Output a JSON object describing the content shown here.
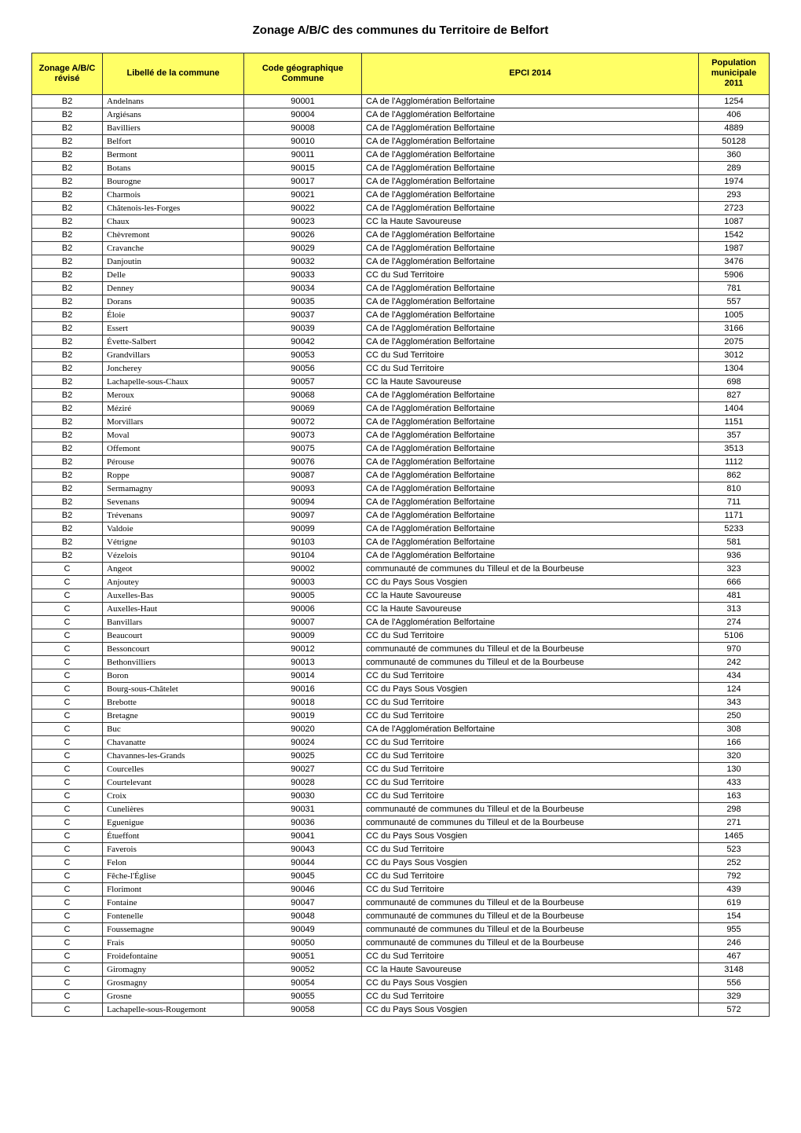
{
  "title": "Zonage A/B/C des communes du Territoire de Belfort",
  "columns": [
    "Zonage A/B/C révisé",
    "Libellé de la commune",
    "Code géographique Commune",
    "EPCI 2014",
    "Population municipale 2011"
  ],
  "header_bg": "#ffff66",
  "border_color": "#333333",
  "rows": [
    [
      "B2",
      "Andelnans",
      "90001",
      "CA de l'Agglomération Belfortaine",
      "1254"
    ],
    [
      "B2",
      "Argiésans",
      "90004",
      "CA de l'Agglomération Belfortaine",
      "406"
    ],
    [
      "B2",
      "Bavilliers",
      "90008",
      "CA de l'Agglomération Belfortaine",
      "4889"
    ],
    [
      "B2",
      "Belfort",
      "90010",
      "CA de l'Agglomération Belfortaine",
      "50128"
    ],
    [
      "B2",
      "Bermont",
      "90011",
      "CA de l'Agglomération Belfortaine",
      "360"
    ],
    [
      "B2",
      "Botans",
      "90015",
      "CA de l'Agglomération Belfortaine",
      "289"
    ],
    [
      "B2",
      "Bourogne",
      "90017",
      "CA de l'Agglomération Belfortaine",
      "1974"
    ],
    [
      "B2",
      "Charmois",
      "90021",
      "CA de l'Agglomération Belfortaine",
      "293"
    ],
    [
      "B2",
      "Châtenois-les-Forges",
      "90022",
      "CA de l'Agglomération Belfortaine",
      "2723"
    ],
    [
      "B2",
      "Chaux",
      "90023",
      "CC la Haute Savoureuse",
      "1087"
    ],
    [
      "B2",
      "Chèvremont",
      "90026",
      "CA de l'Agglomération Belfortaine",
      "1542"
    ],
    [
      "B2",
      "Cravanche",
      "90029",
      "CA de l'Agglomération Belfortaine",
      "1987"
    ],
    [
      "B2",
      "Danjoutin",
      "90032",
      "CA de l'Agglomération Belfortaine",
      "3476"
    ],
    [
      "B2",
      "Delle",
      "90033",
      "CC du Sud Territoire",
      "5906"
    ],
    [
      "B2",
      "Denney",
      "90034",
      "CA de l'Agglomération Belfortaine",
      "781"
    ],
    [
      "B2",
      "Dorans",
      "90035",
      "CA de l'Agglomération Belfortaine",
      "557"
    ],
    [
      "B2",
      "Éloie",
      "90037",
      "CA de l'Agglomération Belfortaine",
      "1005"
    ],
    [
      "B2",
      "Essert",
      "90039",
      "CA de l'Agglomération Belfortaine",
      "3166"
    ],
    [
      "B2",
      "Évette-Salbert",
      "90042",
      "CA de l'Agglomération Belfortaine",
      "2075"
    ],
    [
      "B2",
      "Grandvillars",
      "90053",
      "CC du Sud Territoire",
      "3012"
    ],
    [
      "B2",
      "Joncherey",
      "90056",
      "CC du Sud Territoire",
      "1304"
    ],
    [
      "B2",
      "Lachapelle-sous-Chaux",
      "90057",
      "CC la Haute Savoureuse",
      "698"
    ],
    [
      "B2",
      "Meroux",
      "90068",
      "CA de l'Agglomération Belfortaine",
      "827"
    ],
    [
      "B2",
      "Méziré",
      "90069",
      "CA de l'Agglomération Belfortaine",
      "1404"
    ],
    [
      "B2",
      "Morvillars",
      "90072",
      "CA de l'Agglomération Belfortaine",
      "1151"
    ],
    [
      "B2",
      "Moval",
      "90073",
      "CA de l'Agglomération Belfortaine",
      "357"
    ],
    [
      "B2",
      "Offemont",
      "90075",
      "CA de l'Agglomération Belfortaine",
      "3513"
    ],
    [
      "B2",
      "Pérouse",
      "90076",
      "CA de l'Agglomération Belfortaine",
      "1112"
    ],
    [
      "B2",
      "Roppe",
      "90087",
      "CA de l'Agglomération Belfortaine",
      "862"
    ],
    [
      "B2",
      "Sermamagny",
      "90093",
      "CA de l'Agglomération Belfortaine",
      "810"
    ],
    [
      "B2",
      "Sevenans",
      "90094",
      "CA de l'Agglomération Belfortaine",
      "711"
    ],
    [
      "B2",
      "Trévenans",
      "90097",
      "CA de l'Agglomération Belfortaine",
      "1171"
    ],
    [
      "B2",
      "Valdoie",
      "90099",
      "CA de l'Agglomération Belfortaine",
      "5233"
    ],
    [
      "B2",
      "Vétrigne",
      "90103",
      "CA de l'Agglomération Belfortaine",
      "581"
    ],
    [
      "B2",
      "Vézelois",
      "90104",
      "CA de l'Agglomération Belfortaine",
      "936"
    ],
    [
      "C",
      "Angeot",
      "90002",
      "communauté de communes du Tilleul et de la Bourbeuse",
      "323"
    ],
    [
      "C",
      "Anjoutey",
      "90003",
      "CC du Pays Sous Vosgien",
      "666"
    ],
    [
      "C",
      "Auxelles-Bas",
      "90005",
      "CC la Haute Savoureuse",
      "481"
    ],
    [
      "C",
      "Auxelles-Haut",
      "90006",
      "CC la Haute Savoureuse",
      "313"
    ],
    [
      "C",
      "Banvillars",
      "90007",
      "CA de l'Agglomération Belfortaine",
      "274"
    ],
    [
      "C",
      "Beaucourt",
      "90009",
      "CC du Sud Territoire",
      "5106"
    ],
    [
      "C",
      "Bessoncourt",
      "90012",
      "communauté de communes du Tilleul et de la Bourbeuse",
      "970"
    ],
    [
      "C",
      "Bethonvilliers",
      "90013",
      "communauté de communes du Tilleul et de la Bourbeuse",
      "242"
    ],
    [
      "C",
      "Boron",
      "90014",
      "CC du Sud Territoire",
      "434"
    ],
    [
      "C",
      "Bourg-sous-Châtelet",
      "90016",
      "CC du Pays Sous Vosgien",
      "124"
    ],
    [
      "C",
      "Brebotte",
      "90018",
      "CC du Sud Territoire",
      "343"
    ],
    [
      "C",
      "Bretagne",
      "90019",
      "CC du Sud Territoire",
      "250"
    ],
    [
      "C",
      "Buc",
      "90020",
      "CA de l'Agglomération Belfortaine",
      "308"
    ],
    [
      "C",
      "Chavanatte",
      "90024",
      "CC du Sud Territoire",
      "166"
    ],
    [
      "C",
      "Chavannes-les-Grands",
      "90025",
      "CC du Sud Territoire",
      "320"
    ],
    [
      "C",
      "Courcelles",
      "90027",
      "CC du Sud Territoire",
      "130"
    ],
    [
      "C",
      "Courtelevant",
      "90028",
      "CC du Sud Territoire",
      "433"
    ],
    [
      "C",
      "Croix",
      "90030",
      "CC du Sud Territoire",
      "163"
    ],
    [
      "C",
      "Cunelières",
      "90031",
      "communauté de communes du Tilleul et de la Bourbeuse",
      "298"
    ],
    [
      "C",
      "Eguenigue",
      "90036",
      "communauté de communes du Tilleul et de la Bourbeuse",
      "271"
    ],
    [
      "C",
      "Étueffont",
      "90041",
      "CC du Pays Sous Vosgien",
      "1465"
    ],
    [
      "C",
      "Faverois",
      "90043",
      "CC du Sud Territoire",
      "523"
    ],
    [
      "C",
      "Felon",
      "90044",
      "CC du Pays Sous Vosgien",
      "252"
    ],
    [
      "C",
      "Fêche-l'Église",
      "90045",
      "CC du Sud Territoire",
      "792"
    ],
    [
      "C",
      "Florimont",
      "90046",
      "CC du Sud Territoire",
      "439"
    ],
    [
      "C",
      "Fontaine",
      "90047",
      "communauté de communes du Tilleul et de la Bourbeuse",
      "619"
    ],
    [
      "C",
      "Fontenelle",
      "90048",
      "communauté de communes du Tilleul et de la Bourbeuse",
      "154"
    ],
    [
      "C",
      "Foussemagne",
      "90049",
      "communauté de communes du Tilleul et de la Bourbeuse",
      "955"
    ],
    [
      "C",
      "Frais",
      "90050",
      "communauté de communes du Tilleul et de la Bourbeuse",
      "246"
    ],
    [
      "C",
      "Froidefontaine",
      "90051",
      "CC du Sud Territoire",
      "467"
    ],
    [
      "C",
      "Giromagny",
      "90052",
      "CC la Haute Savoureuse",
      "3148"
    ],
    [
      "C",
      "Grosmagny",
      "90054",
      "CC du Pays Sous Vosgien",
      "556"
    ],
    [
      "C",
      "Grosne",
      "90055",
      "CC du Sud Territoire",
      "329"
    ],
    [
      "C",
      "Lachapelle-sous-Rougemont",
      "90058",
      "CC du Pays Sous Vosgien",
      "572"
    ]
  ]
}
